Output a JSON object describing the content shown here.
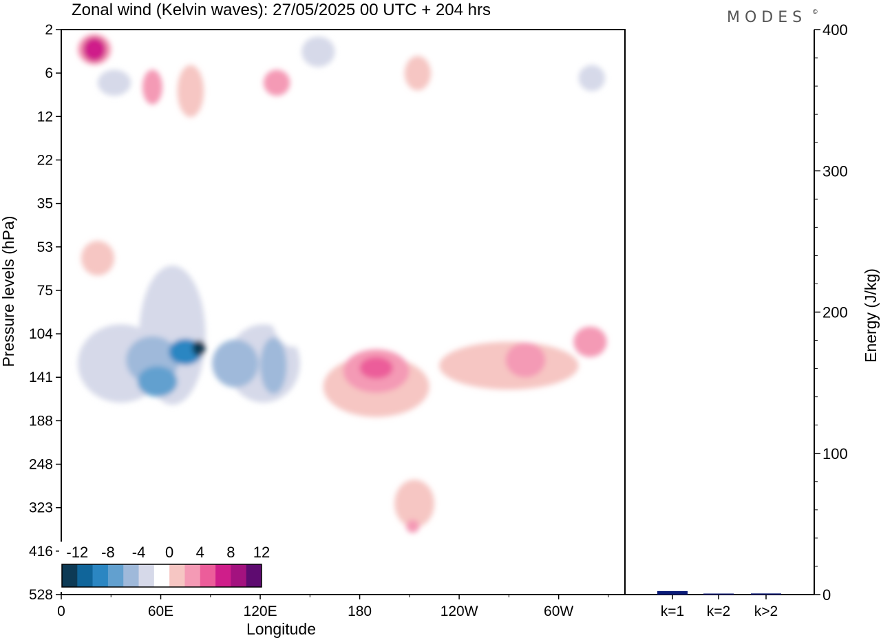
{
  "title": "Zonal wind (Kelvin waves):  27/05/2025  00 UTC  + 204 hrs",
  "brand": "MODES",
  "brand_mark": "©",
  "chart_data": [
    {
      "type": "heatmap",
      "name": "zonal-wind-hovmoller",
      "title": "Zonal wind (Kelvin waves):  27/05/2025  00 UTC  + 204 hrs",
      "xlabel": "Longitude",
      "ylabel": "Pressure levels (hPa)",
      "x_ticks": [
        "0",
        "60E",
        "120E",
        "180",
        "120W",
        "60W"
      ],
      "x_tick_degrees": [
        0,
        60,
        120,
        180,
        240,
        300
      ],
      "xlim": [
        0,
        340
      ],
      "y_ticks": [
        "2",
        "6",
        "12",
        "22",
        "35",
        "53",
        "75",
        "104",
        "141",
        "188",
        "248",
        "323",
        "416",
        "528"
      ],
      "colorbar": {
        "labels": [
          "-12",
          "-8",
          "-4",
          "0",
          "4",
          "8",
          "12"
        ],
        "levels": [
          -14,
          -12,
          -10,
          -8,
          -6,
          -4,
          -2,
          2,
          4,
          6,
          8,
          10,
          12,
          14
        ],
        "colors": [
          "#0d3a55",
          "#10659a",
          "#2b86c2",
          "#62a0cf",
          "#9fb9da",
          "#d6d9e9",
          "#ffffff",
          "#f6c6c3",
          "#f49ab5",
          "#ec5d9a",
          "#cf1e8a",
          "#a3127f",
          "#5e0b70"
        ]
      },
      "regions": [
        {
          "value": -3,
          "center": [
            36,
            128
          ],
          "spread": [
            26,
            0.9
          ]
        },
        {
          "value": -3,
          "center": [
            122,
            128
          ],
          "spread": [
            22,
            0.9
          ]
        },
        {
          "value": -3,
          "center": [
            67,
            105
          ],
          "spread": [
            20,
            1.6
          ]
        },
        {
          "value": -2,
          "center": [
            140,
            80
          ],
          "spread": [
            15,
            1.1
          ]
        },
        {
          "value": -2,
          "center": [
            215,
            3
          ],
          "spread": [
            15,
            0.6
          ]
        },
        {
          "value": -2,
          "center": [
            297,
            7
          ],
          "spread": [
            14,
            0.6
          ]
        },
        {
          "value": -5,
          "center": [
            55,
            125
          ],
          "spread": [
            16,
            0.55
          ]
        },
        {
          "value": -6,
          "center": [
            105,
            128
          ],
          "spread": [
            14,
            0.55
          ]
        },
        {
          "value": -6,
          "center": [
            128,
            130
          ],
          "spread": [
            8,
            0.65
          ]
        },
        {
          "value": -7,
          "center": [
            58,
            145
          ],
          "spread": [
            12,
            0.35
          ]
        },
        {
          "value": -10,
          "center": [
            75,
            118
          ],
          "spread": [
            10,
            0.3
          ]
        },
        {
          "value": -13,
          "center": [
            83,
            115
          ],
          "spread": [
            4,
            0.18
          ]
        },
        {
          "value": -4,
          "center": [
            155,
            3.5
          ],
          "spread": [
            10,
            0.35
          ]
        },
        {
          "value": -4,
          "center": [
            32,
            7
          ],
          "spread": [
            10,
            0.3
          ]
        },
        {
          "value": -4,
          "center": [
            320,
            6.5
          ],
          "spread": [
            8,
            0.3
          ]
        },
        {
          "value": 3,
          "center": [
            190,
            150
          ],
          "spread": [
            32,
            0.7
          ]
        },
        {
          "value": 3,
          "center": [
            270,
            130
          ],
          "spread": [
            42,
            0.55
          ]
        },
        {
          "value": 3,
          "center": [
            213,
            315
          ],
          "spread": [
            12,
            0.55
          ]
        },
        {
          "value": 3,
          "center": [
            215,
            6
          ],
          "spread": [
            8,
            0.4
          ]
        },
        {
          "value": 3,
          "center": [
            78,
            8
          ],
          "spread": [
            8,
            0.6
          ]
        },
        {
          "value": 3,
          "center": [
            22,
            58
          ],
          "spread": [
            10,
            0.4
          ]
        },
        {
          "value": 5,
          "center": [
            190,
            135
          ],
          "spread": [
            20,
            0.5
          ]
        },
        {
          "value": 5,
          "center": [
            280,
            125
          ],
          "spread": [
            12,
            0.4
          ]
        },
        {
          "value": 5,
          "center": [
            319,
            110
          ],
          "spread": [
            10,
            0.35
          ]
        },
        {
          "value": 5,
          "center": [
            212,
            360
          ],
          "spread": [
            4,
            0.15
          ]
        },
        {
          "value": 5,
          "center": [
            20,
            3.3
          ],
          "spread": [
            10,
            0.35
          ]
        },
        {
          "value": 7,
          "center": [
            190,
            132
          ],
          "spread": [
            10,
            0.25
          ]
        },
        {
          "value": 8,
          "center": [
            20,
            3.3
          ],
          "spread": [
            7,
            0.28
          ]
        },
        {
          "value": 4,
          "center": [
            55,
            7.5
          ],
          "spread": [
            6,
            0.4
          ]
        },
        {
          "value": 4,
          "center": [
            130,
            7
          ],
          "spread": [
            8,
            0.3
          ]
        }
      ]
    },
    {
      "type": "bar",
      "name": "kelvin-energy",
      "categories": [
        "k=1",
        "k=2",
        "k>2"
      ],
      "values": [
        2.5,
        0.4,
        0.8
      ],
      "ylabel": "Energy (J/kg)",
      "ylim": [
        0,
        400
      ],
      "y_ticks": [
        "0",
        "100",
        "200",
        "300",
        "400"
      ],
      "bar_color": "#0a1b78"
    }
  ]
}
